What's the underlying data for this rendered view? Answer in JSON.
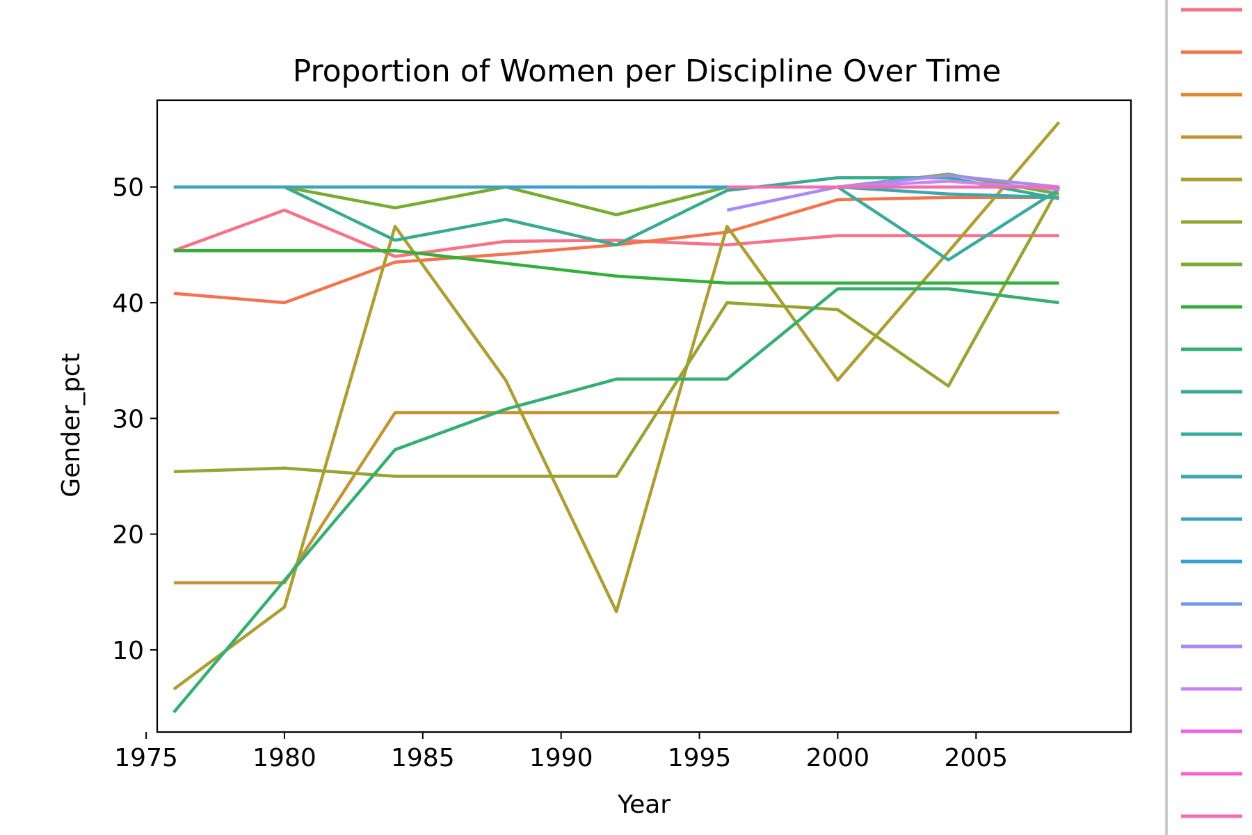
{
  "chart_data": {
    "type": "line",
    "title": "Proportion of Women per Discipline Over Time",
    "xlabel": "Year",
    "ylabel": "Gender_pct",
    "xlim": [
      1975.4,
      2010.6
    ],
    "ylim": [
      2.9,
      57.5
    ],
    "xticks": [
      1975,
      1980,
      1985,
      1990,
      1995,
      2000,
      2005
    ],
    "yticks": [
      10,
      20,
      30,
      40,
      50
    ],
    "grid": false,
    "legend_position": "right (clipped)",
    "series": [
      {
        "color": "#f77189",
        "x": [
          1976,
          1980,
          1984,
          1988,
          1992,
          1996,
          2000,
          2004,
          2008
        ],
        "y": [
          44.5,
          48.0,
          44.0,
          45.3,
          45.4,
          45.0,
          45.8,
          45.8,
          45.8
        ]
      },
      {
        "color": "#f3734d",
        "x": [
          1976,
          1980,
          1984,
          1988,
          1992,
          1996,
          2000,
          2004,
          2008
        ],
        "y": [
          40.8,
          40.0,
          43.5,
          44.2,
          45.0,
          46.1,
          48.9,
          49.1,
          49.1
        ]
      },
      {
        "color": "#dc8932",
        "x": [
          2008
        ],
        "y": [
          50.0
        ]
      },
      {
        "color": "#c39532",
        "x": [
          1976,
          1980,
          1984,
          1988,
          1992,
          1996,
          2000,
          2004,
          2008
        ],
        "y": [
          15.8,
          15.8,
          30.5,
          30.5,
          30.5,
          30.5,
          30.5,
          30.5,
          30.5
        ]
      },
      {
        "color": "#ae9d31",
        "x": [
          1976,
          1980,
          1984,
          1988,
          1992,
          1996,
          2000,
          2004,
          2008
        ],
        "y": [
          6.6,
          13.7,
          46.6,
          33.3,
          13.3,
          46.6,
          33.3,
          44.4,
          55.6
        ]
      },
      {
        "color": "#97a431",
        "x": [
          1976,
          1980,
          1984,
          1988,
          1992,
          1996,
          2000,
          2004,
          2008
        ],
        "y": [
          25.4,
          25.7,
          25.0,
          25.0,
          25.0,
          40.0,
          39.4,
          32.8,
          50.0
        ]
      },
      {
        "color": "#77ab31",
        "x": [
          1976,
          1980,
          1984,
          1988,
          1992,
          1996,
          2000,
          2004,
          2008
        ],
        "y": [
          50.0,
          50.0,
          48.2,
          50.0,
          47.6,
          50.0,
          50.0,
          51.1,
          49.4
        ]
      },
      {
        "color": "#33b039",
        "x": [
          1976,
          1980,
          1984,
          1988,
          1992,
          1996,
          2000,
          2004,
          2008
        ],
        "y": [
          44.5,
          44.5,
          44.5,
          43.4,
          42.3,
          41.7,
          41.7,
          41.7,
          41.7
        ]
      },
      {
        "color": "#35ae74",
        "x": [
          1976,
          1980,
          1984,
          1988,
          1992,
          1996,
          2000,
          2004,
          2008
        ],
        "y": [
          4.6,
          16.0,
          27.3,
          30.8,
          33.4,
          33.4,
          41.2,
          41.2,
          40.0
        ]
      },
      {
        "color": "#37ab90",
        "x": [
          1976,
          1980,
          1984,
          1988,
          1992,
          1996,
          2000,
          2004,
          2008
        ],
        "y": [
          50.0,
          50.0,
          45.4,
          47.2,
          45.0,
          49.7,
          50.8,
          50.8,
          49.0
        ]
      },
      {
        "color": "#38aaa0",
        "x": [
          1976,
          1980,
          1984,
          1988,
          1992,
          1996,
          2000,
          2004,
          2008
        ],
        "y": [
          50.0,
          50.0,
          50.0,
          50.0,
          50.0,
          50.0,
          50.0,
          43.7,
          49.8
        ]
      },
      {
        "color": "#3aa8ae",
        "x": [
          1976,
          1980,
          1984,
          1988,
          1992,
          1996,
          2000,
          2004,
          2008
        ],
        "y": [
          50.0,
          50.0,
          50.0,
          50.0,
          50.0,
          50.0,
          50.0,
          49.4,
          49.1
        ]
      },
      {
        "color": "#3ba4bc",
        "x": [
          1976,
          1980,
          1984,
          1988,
          1992,
          1996,
          2000,
          2004,
          2008
        ],
        "y": [
          50.0,
          50.0,
          50.0,
          50.0,
          50.0,
          50.0,
          50.0,
          50.0,
          50.0
        ]
      },
      {
        "color": "#3c9fd4",
        "x": [
          1988,
          1992,
          1996,
          2000,
          2004,
          2008
        ],
        "y": [
          50.0,
          50.0,
          50.0,
          50.0,
          50.0,
          50.0
        ]
      },
      {
        "color": "#6d98ee",
        "x": [
          1996,
          2000,
          2004,
          2008
        ],
        "y": [
          50.0,
          50.0,
          50.0,
          50.0
        ]
      },
      {
        "color": "#a48cf4",
        "x": [
          1996,
          2000,
          2004,
          2008
        ],
        "y": [
          48.0,
          50.0,
          51.0,
          50.0
        ]
      },
      {
        "color": "#c784f3",
        "x": [
          1996,
          2000,
          2004,
          2008
        ],
        "y": [
          50.0,
          50.0,
          50.5,
          49.8
        ]
      },
      {
        "color": "#f161e5",
        "x": [
          1996,
          2000,
          2004,
          2008
        ],
        "y": [
          50.0,
          50.0,
          50.0,
          50.0
        ]
      },
      {
        "color": "#f565cc",
        "x": [
          1996,
          2000,
          2004,
          2008
        ],
        "y": [
          50.0,
          50.0,
          50.0,
          50.0
        ]
      },
      {
        "color": "#f66bb1",
        "x": [
          1996,
          2000,
          2004,
          2008
        ],
        "y": [
          50.0,
          50.0,
          50.0,
          50.0
        ]
      }
    ]
  }
}
